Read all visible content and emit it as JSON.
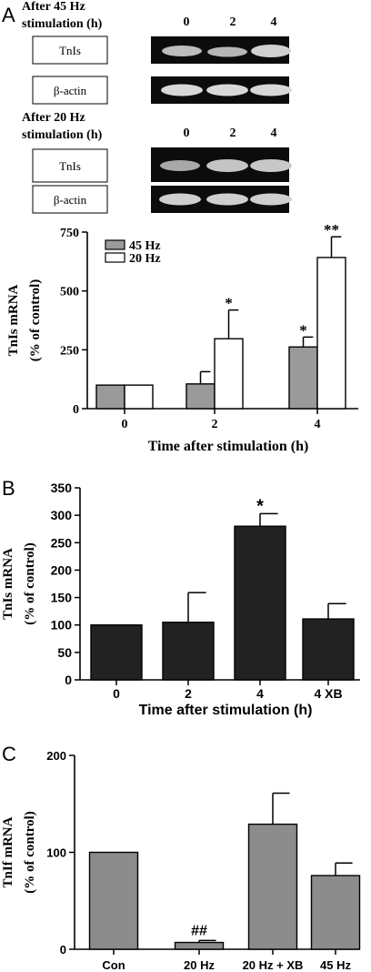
{
  "panel_a": {
    "letter": "A",
    "gel_45": {
      "condition_line1": "After 45 Hz",
      "condition_line2": "stimulation (h)",
      "lanes": [
        "0",
        "2",
        "4"
      ],
      "rows": [
        "TnIs",
        "β-actin"
      ]
    },
    "gel_20": {
      "condition_line1": "After 20 Hz",
      "condition_line2": "stimulation (h)",
      "lanes": [
        "0",
        "2",
        "4"
      ],
      "rows": [
        "TnIs",
        "β-actin"
      ]
    }
  },
  "panel_b": {
    "letter": "B"
  },
  "panel_c": {
    "letter": "C"
  },
  "chart_data": [
    {
      "type": "bar",
      "panel": "A",
      "categories": [
        "0",
        "2",
        "4"
      ],
      "series": [
        {
          "name": "45 Hz",
          "color": "#9a9a9a",
          "values": [
            100,
            105,
            262
          ],
          "errors": [
            0,
            52,
            42
          ],
          "marks": [
            "",
            "",
            "*"
          ]
        },
        {
          "name": "20 Hz",
          "color": "#ffffff",
          "values": [
            100,
            297,
            642
          ],
          "errors": [
            0,
            122,
            88
          ],
          "marks": [
            "",
            "*",
            "**"
          ]
        }
      ],
      "xlabel": "Time after stimulation (h)",
      "ylabel_line1": "TnIs mRNA",
      "ylabel_line2": "(% of control)",
      "ylim": [
        0,
        750
      ],
      "yticks": [
        "0",
        "250",
        "500",
        "750"
      ],
      "legend": "top-left",
      "grid": false
    },
    {
      "type": "bar",
      "panel": "B",
      "categories": [
        "0",
        "2",
        "4",
        "4 XB"
      ],
      "series": [
        {
          "color": "#222222",
          "values": [
            100,
            105,
            280,
            111
          ],
          "errors": [
            0,
            54,
            23,
            28
          ],
          "marks": [
            "",
            "",
            "*",
            ""
          ]
        }
      ],
      "xlabel": "Time after stimulation (h)",
      "ylabel_line1": "TnIs mRNA",
      "ylabel_line2": "(% of control)",
      "ylim": [
        0,
        350
      ],
      "yticks": [
        "0",
        "50",
        "100",
        "150",
        "200",
        "250",
        "300",
        "350"
      ],
      "grid": false
    },
    {
      "type": "bar",
      "panel": "C",
      "categories": [
        "Con",
        "20 Hz",
        "20 Hz + XB",
        "45 Hz"
      ],
      "series": [
        {
          "color": "#8c8c8c",
          "values": [
            100,
            7,
            129,
            76
          ],
          "errors": [
            0,
            2,
            32,
            13
          ],
          "marks": [
            "",
            "##",
            "",
            ""
          ]
        }
      ],
      "xlabel": "",
      "ylabel_line1": "TnIf mRNA",
      "ylabel_line2": "(% of control)",
      "ylim": [
        0,
        200
      ],
      "yticks": [
        "0",
        "100",
        "200"
      ],
      "grid": false
    }
  ]
}
